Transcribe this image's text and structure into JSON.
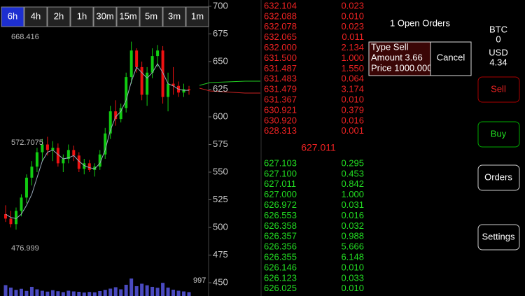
{
  "chart_panel": {
    "timeframes": [
      "6h",
      "4h",
      "2h",
      "1h",
      "30m",
      "15m",
      "5m",
      "3m",
      "1m"
    ],
    "selected_timeframe": 0,
    "ylim": [
      450,
      700
    ],
    "yticks": [
      700,
      675,
      650,
      625,
      600,
      575,
      550,
      525,
      500,
      475,
      450
    ],
    "max_label": {
      "value": 668.416,
      "label": "668.416"
    },
    "mid_label": {
      "value": 572.7075,
      "label": "572.7075"
    },
    "min_label": {
      "value": 476.999,
      "label": "476.999"
    },
    "volume_max": 997,
    "candles": [
      {
        "open": 512,
        "high": 520,
        "low": 505,
        "close": 508
      },
      {
        "open": 508,
        "high": 515,
        "low": 500,
        "close": 503
      },
      {
        "open": 503,
        "high": 518,
        "low": 498,
        "close": 515
      },
      {
        "open": 515,
        "high": 530,
        "low": 510,
        "close": 527
      },
      {
        "open": 527,
        "high": 548,
        "low": 522,
        "close": 545
      },
      {
        "open": 545,
        "high": 560,
        "low": 538,
        "close": 555
      },
      {
        "open": 555,
        "high": 572,
        "low": 550,
        "close": 568
      },
      {
        "open": 568,
        "high": 580,
        "low": 560,
        "close": 575
      },
      {
        "open": 575,
        "high": 582,
        "low": 565,
        "close": 570
      },
      {
        "open": 570,
        "high": 578,
        "low": 560,
        "close": 572
      },
      {
        "open": 572,
        "high": 576,
        "low": 555,
        "close": 558
      },
      {
        "open": 558,
        "high": 566,
        "low": 550,
        "close": 562
      },
      {
        "open": 562,
        "high": 575,
        "low": 558,
        "close": 570
      },
      {
        "open": 570,
        "high": 574,
        "low": 560,
        "close": 565
      },
      {
        "open": 565,
        "high": 568,
        "low": 550,
        "close": 553
      },
      {
        "open": 553,
        "high": 562,
        "low": 548,
        "close": 558
      },
      {
        "open": 558,
        "high": 561,
        "low": 550,
        "close": 552
      },
      {
        "open": 552,
        "high": 558,
        "low": 546,
        "close": 555
      },
      {
        "open": 555,
        "high": 570,
        "low": 552,
        "close": 566
      },
      {
        "open": 566,
        "high": 590,
        "low": 562,
        "close": 585
      },
      {
        "open": 585,
        "high": 610,
        "low": 580,
        "close": 605
      },
      {
        "open": 605,
        "high": 615,
        "low": 592,
        "close": 598
      },
      {
        "open": 598,
        "high": 612,
        "low": 595,
        "close": 608
      },
      {
        "open": 608,
        "high": 640,
        "low": 604,
        "close": 636
      },
      {
        "open": 636,
        "high": 668,
        "low": 630,
        "close": 660
      },
      {
        "open": 660,
        "high": 662,
        "low": 640,
        "close": 645
      },
      {
        "open": 645,
        "high": 650,
        "low": 615,
        "close": 620
      },
      {
        "open": 620,
        "high": 645,
        "low": 610,
        "close": 640
      },
      {
        "open": 640,
        "high": 662,
        "low": 635,
        "close": 655
      },
      {
        "open": 655,
        "high": 665,
        "low": 645,
        "close": 660
      },
      {
        "open": 660,
        "high": 664,
        "low": 612,
        "close": 618
      },
      {
        "open": 618,
        "high": 640,
        "low": 605,
        "close": 630
      },
      {
        "open": 630,
        "high": 645,
        "low": 620,
        "close": 628
      },
      {
        "open": 628,
        "high": 632,
        "low": 618,
        "close": 622
      },
      {
        "open": 622,
        "high": 630,
        "low": 618,
        "close": 625
      },
      {
        "open": 625,
        "high": 628,
        "low": 620,
        "close": 624
      }
    ],
    "ma": [
      512,
      509,
      508,
      512,
      520,
      530,
      545,
      560,
      568,
      570,
      566,
      562,
      563,
      565,
      560,
      556,
      554,
      553,
      558,
      570,
      588,
      600,
      605,
      615,
      632,
      645,
      640,
      635,
      640,
      648,
      640,
      630,
      628,
      625,
      624,
      624
    ],
    "volumes": [
      620,
      480,
      350,
      410,
      290,
      520,
      380,
      300,
      250,
      330,
      270,
      220,
      300,
      260,
      240,
      200,
      230,
      210,
      280,
      350,
      420,
      500,
      380,
      640,
      997,
      560,
      700,
      610,
      520,
      470,
      750,
      480,
      360,
      300,
      260,
      220
    ]
  },
  "order_book": {
    "asks": [
      {
        "price": "632.104",
        "amount": "0.023"
      },
      {
        "price": "632.088",
        "amount": "0.010"
      },
      {
        "price": "632.078",
        "amount": "0.023"
      },
      {
        "price": "632.065",
        "amount": "0.011"
      },
      {
        "price": "632.000",
        "amount": "2.134"
      },
      {
        "price": "631.500",
        "amount": "1.000"
      },
      {
        "price": "631.487",
        "amount": "1.550"
      },
      {
        "price": "631.483",
        "amount": "0.064"
      },
      {
        "price": "631.479",
        "amount": "3.174"
      },
      {
        "price": "631.367",
        "amount": "0.010"
      },
      {
        "price": "630.921",
        "amount": "0.379"
      },
      {
        "price": "630.920",
        "amount": "0.016"
      },
      {
        "price": "628.313",
        "amount": "0.001"
      }
    ],
    "last_price": "627.011",
    "bids": [
      {
        "price": "627.103",
        "amount": "0.295"
      },
      {
        "price": "627.100",
        "amount": "0.453"
      },
      {
        "price": "627.011",
        "amount": "0.842"
      },
      {
        "price": "627.000",
        "amount": "1.000"
      },
      {
        "price": "626.972",
        "amount": "0.031"
      },
      {
        "price": "626.553",
        "amount": "0.016"
      },
      {
        "price": "626.358",
        "amount": "0.032"
      },
      {
        "price": "626.357",
        "amount": "0.988"
      },
      {
        "price": "626.356",
        "amount": "5.666"
      },
      {
        "price": "626.355",
        "amount": "6.148"
      },
      {
        "price": "626.146",
        "amount": "0.010"
      },
      {
        "price": "626.123",
        "amount": "0.033"
      },
      {
        "price": "626.025",
        "amount": "0.010"
      }
    ]
  },
  "open_orders": {
    "title": "1 Open Orders",
    "order": {
      "type": "Type Sell",
      "amount": "Amount 3.66",
      "price": "Price 1000.000"
    },
    "cancel": "Cancel"
  },
  "account": {
    "btc_label": "BTC",
    "btc": "0",
    "usd_label": "USD",
    "usd": "4.34"
  },
  "buttons": {
    "sell": "Sell",
    "buy": "Buy",
    "orders": "Orders",
    "settings": "Settings"
  }
}
